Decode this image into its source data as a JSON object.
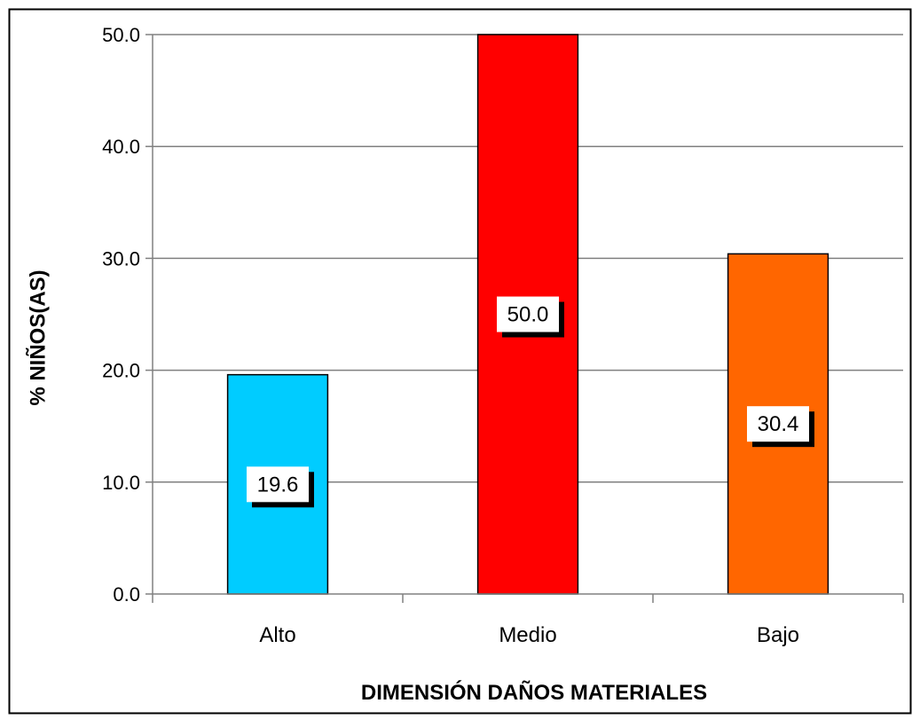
{
  "chart_data": {
    "type": "bar",
    "categories": [
      "Alto",
      "Medio",
      "Bajo"
    ],
    "values": [
      19.6,
      50.0,
      30.4
    ],
    "data_labels": [
      "19.6",
      "50.0",
      "30.4"
    ],
    "bar_colors": [
      "#00CCFF",
      "#FF0000",
      "#FF6600"
    ],
    "title": "",
    "xlabel": "DIMENSIÓN DAÑOS MATERIALES",
    "ylabel": "% NIÑOS(AS)",
    "ylim": [
      0,
      50
    ],
    "yticks": [
      "0.0",
      "10.0",
      "20.0",
      "30.0",
      "40.0",
      "50.0"
    ],
    "grid": true,
    "legend": "none"
  }
}
